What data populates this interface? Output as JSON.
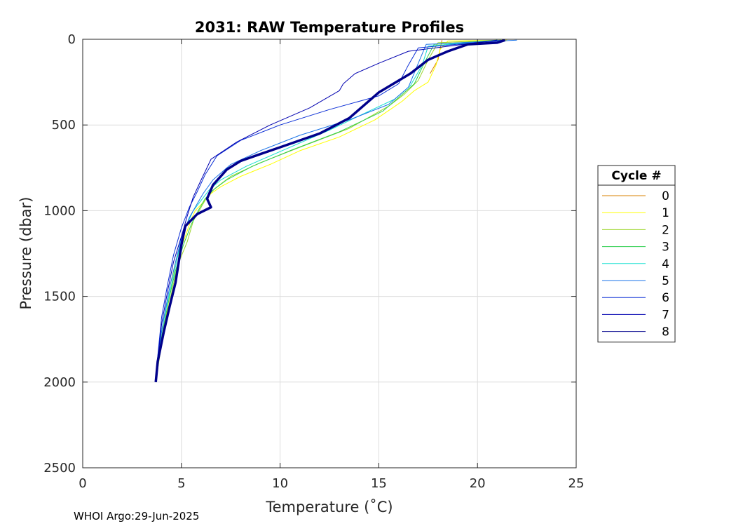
{
  "chart_data": {
    "type": "line",
    "title": "2031: RAW Temperature Profiles",
    "xlabel": "Temperature (˚C)",
    "ylabel": "Pressure (dbar)",
    "xlim": [
      0,
      25
    ],
    "ylim": [
      0,
      2500
    ],
    "y_reversed": true,
    "grid": true,
    "x_ticks": [
      "0",
      "5",
      "10",
      "15",
      "20",
      "25"
    ],
    "y_ticks": [
      "0",
      "500",
      "1000",
      "1500",
      "2000",
      "2500"
    ],
    "legend": {
      "title": "Cycle #",
      "position": "right-outside"
    },
    "series": [
      {
        "name": "0",
        "color": "#d98000",
        "temperature": [
          18.2,
          18.1,
          18.0,
          17.8,
          17.6
        ],
        "pressure": [
          5,
          60,
          120,
          160,
          200
        ]
      },
      {
        "name": "1",
        "color": "#ffff00",
        "temperature": [
          21.5,
          18.5,
          18.1,
          17.9,
          17.5,
          16.8,
          16.2,
          15.7,
          14.8,
          13.0,
          11.0,
          9.5,
          8.0,
          7.0,
          6.5,
          6.2,
          5.7,
          5.5,
          5.2,
          4.7,
          4.4,
          4.1,
          3.8,
          3.7
        ],
        "pressure": [
          5,
          10,
          60,
          150,
          250,
          300,
          360,
          400,
          470,
          570,
          650,
          730,
          800,
          860,
          900,
          940,
          1000,
          1050,
          1150,
          1300,
          1500,
          1700,
          1900,
          2000
        ]
      },
      {
        "name": "2",
        "color": "#9bd42a",
        "temperature": [
          21.0,
          18.0,
          17.5,
          17.0,
          16.3,
          15.5,
          13.5,
          11.0,
          9.0,
          7.5,
          6.7,
          6.3,
          6.0,
          5.6,
          5.3,
          4.8,
          4.5,
          4.2,
          3.9,
          3.7
        ],
        "pressure": [
          5,
          20,
          120,
          240,
          320,
          390,
          520,
          630,
          720,
          800,
          870,
          920,
          980,
          1060,
          1180,
          1320,
          1480,
          1650,
          1850,
          2000
        ]
      },
      {
        "name": "3",
        "color": "#2ecf4f",
        "temperature": [
          21.2,
          17.8,
          17.3,
          16.8,
          16.0,
          15.2,
          13.0,
          10.5,
          8.6,
          7.3,
          6.6,
          6.2,
          5.9,
          5.5,
          5.1,
          4.7,
          4.4,
          4.1,
          3.8,
          3.7
        ],
        "pressure": [
          5,
          30,
          140,
          260,
          340,
          420,
          540,
          650,
          740,
          820,
          880,
          930,
          990,
          1080,
          1200,
          1350,
          1500,
          1670,
          1860,
          2000
        ]
      },
      {
        "name": "4",
        "color": "#16e0d0",
        "temperature": [
          21.0,
          17.5,
          17.2,
          16.6,
          15.8,
          14.5,
          12.5,
          10.3,
          8.3,
          7.0,
          6.4,
          6.0,
          5.6,
          5.2,
          4.9,
          4.6,
          4.3,
          4.0,
          3.8,
          3.7
        ],
        "pressure": [
          5,
          40,
          150,
          270,
          350,
          420,
          530,
          640,
          740,
          820,
          880,
          940,
          1000,
          1100,
          1220,
          1380,
          1530,
          1700,
          1880,
          2000
        ]
      },
      {
        "name": "5",
        "color": "#1a73e8",
        "temperature": [
          22.0,
          17.4,
          17.0,
          16.5,
          15.5,
          13.5,
          11.0,
          9.0,
          7.5,
          6.6,
          6.1,
          5.8,
          5.4,
          5.0,
          4.7,
          4.4,
          4.1,
          3.8,
          3.7
        ],
        "pressure": [
          5,
          30,
          140,
          280,
          380,
          470,
          560,
          650,
          730,
          820,
          900,
          960,
          1040,
          1160,
          1300,
          1450,
          1630,
          1850,
          2000
        ]
      },
      {
        "name": "6",
        "color": "#0a2ed6",
        "temperature": [
          21.3,
          17.0,
          16.5,
          16.0,
          15.0,
          12.5,
          10.0,
          8.0,
          6.8,
          6.2,
          5.8,
          5.4,
          5.0,
          4.6,
          4.3,
          4.0,
          3.8,
          3.7
        ],
        "pressure": [
          5,
          50,
          150,
          260,
          330,
          410,
          500,
          590,
          680,
          790,
          890,
          980,
          1100,
          1260,
          1430,
          1620,
          1850,
          2000
        ]
      },
      {
        "name": "7",
        "color": "#0000b0",
        "temperature": [
          21.0,
          16.5,
          15.0,
          13.8,
          13.2,
          13.0,
          11.5,
          9.5,
          7.8,
          6.5,
          6.0,
          5.6,
          5.3,
          5.0,
          4.6,
          4.3,
          4.0,
          3.8,
          3.7
        ],
        "pressure": [
          5,
          70,
          140,
          200,
          260,
          300,
          400,
          500,
          600,
          700,
          820,
          920,
          1030,
          1150,
          1300,
          1470,
          1660,
          1870,
          2000
        ]
      },
      {
        "name": "8",
        "color": "#00008b",
        "temperature": [
          21.4,
          21.0,
          19.5,
          18.5,
          17.5,
          16.6,
          15.0,
          13.5,
          12.0,
          10.0,
          9.0,
          8.0,
          7.3,
          6.6,
          6.3,
          6.5,
          5.8,
          5.2,
          5.0,
          4.7,
          4.4,
          4.1,
          3.8,
          3.7
        ],
        "pressure": [
          5,
          20,
          30,
          70,
          120,
          200,
          310,
          460,
          550,
          630,
          670,
          710,
          760,
          850,
          930,
          980,
          1020,
          1090,
          1200,
          1420,
          1560,
          1710,
          1880,
          2000
        ]
      }
    ]
  },
  "footer": "WHOI Argo:29-Jun-2025"
}
